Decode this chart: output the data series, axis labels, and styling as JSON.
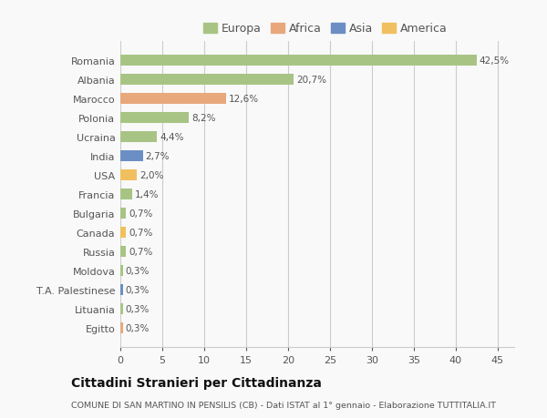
{
  "countries": [
    "Romania",
    "Albania",
    "Marocco",
    "Polonia",
    "Ucraina",
    "India",
    "USA",
    "Francia",
    "Bulgaria",
    "Canada",
    "Russia",
    "Moldova",
    "T.A. Palestinese",
    "Lituania",
    "Egitto"
  ],
  "values": [
    42.5,
    20.7,
    12.6,
    8.2,
    4.4,
    2.7,
    2.0,
    1.4,
    0.7,
    0.7,
    0.7,
    0.3,
    0.3,
    0.3,
    0.3
  ],
  "labels": [
    "42,5%",
    "20,7%",
    "12,6%",
    "8,2%",
    "4,4%",
    "2,7%",
    "2,0%",
    "1,4%",
    "0,7%",
    "0,7%",
    "0,7%",
    "0,3%",
    "0,3%",
    "0,3%",
    "0,3%"
  ],
  "colors": [
    "#a8c484",
    "#a8c484",
    "#e8a87c",
    "#a8c484",
    "#a8c484",
    "#6b8fc4",
    "#f0c060",
    "#a8c484",
    "#a8c484",
    "#f0c060",
    "#a8c484",
    "#a8c484",
    "#6b8fc4",
    "#a8c484",
    "#e8a87c"
  ],
  "legend_labels": [
    "Europa",
    "Africa",
    "Asia",
    "America"
  ],
  "legend_colors": [
    "#a8c484",
    "#e8a87c",
    "#6b8fc4",
    "#f0c060"
  ],
  "xlim": [
    0,
    47
  ],
  "xticks": [
    0,
    5,
    10,
    15,
    20,
    25,
    30,
    35,
    40,
    45
  ],
  "title": "Cittadini Stranieri per Cittadinanza",
  "subtitle": "COMUNE DI SAN MARTINO IN PENSILIS (CB) - Dati ISTAT al 1° gennaio - Elaborazione TUTTITALIA.IT",
  "background_color": "#f9f9f9",
  "bar_height": 0.55,
  "grid_color": "#cccccc",
  "text_color": "#555555",
  "title_color": "#111111",
  "subtitle_color": "#555555"
}
